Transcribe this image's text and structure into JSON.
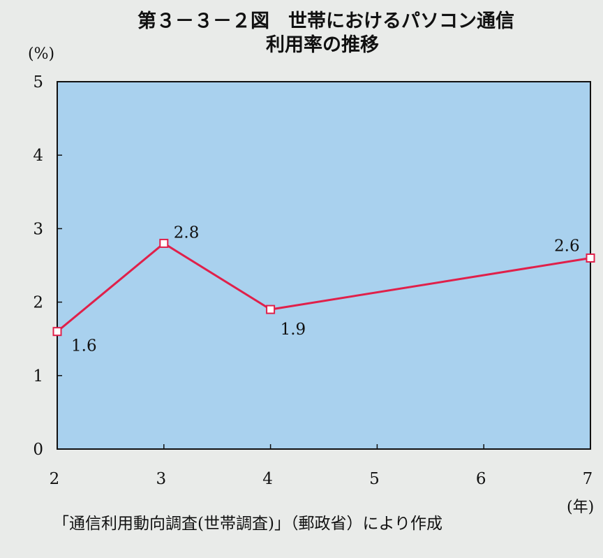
{
  "title_line1": "第３－３－２図　世帯におけるパソコン通信",
  "title_line2": "利用率の推移",
  "source": "「通信利用動向調査(世帯調査)」（郵政省）により作成",
  "colors": {
    "plot_bg": "#a9d1ee",
    "line": "#e0204a",
    "marker_fill": "#ffffff"
  },
  "chart_data": {
    "type": "line",
    "title": "第３－３－２図　世帯におけるパソコン通信利用率の推移",
    "ylabel": "(%)",
    "xlabel": "(年)",
    "xlim": [
      2,
      7
    ],
    "ylim": [
      0,
      5
    ],
    "x_ticks": [
      "2",
      "3",
      "4",
      "5",
      "6",
      "7"
    ],
    "y_ticks": [
      "0",
      "1",
      "2",
      "3",
      "4",
      "5"
    ],
    "grid": false,
    "series": [
      {
        "x": [
          2,
          3,
          4,
          7
        ],
        "values": [
          1.6,
          2.8,
          1.9,
          2.6
        ],
        "labels": [
          "1.6",
          "2.8",
          "1.9",
          "2.6"
        ]
      }
    ]
  }
}
